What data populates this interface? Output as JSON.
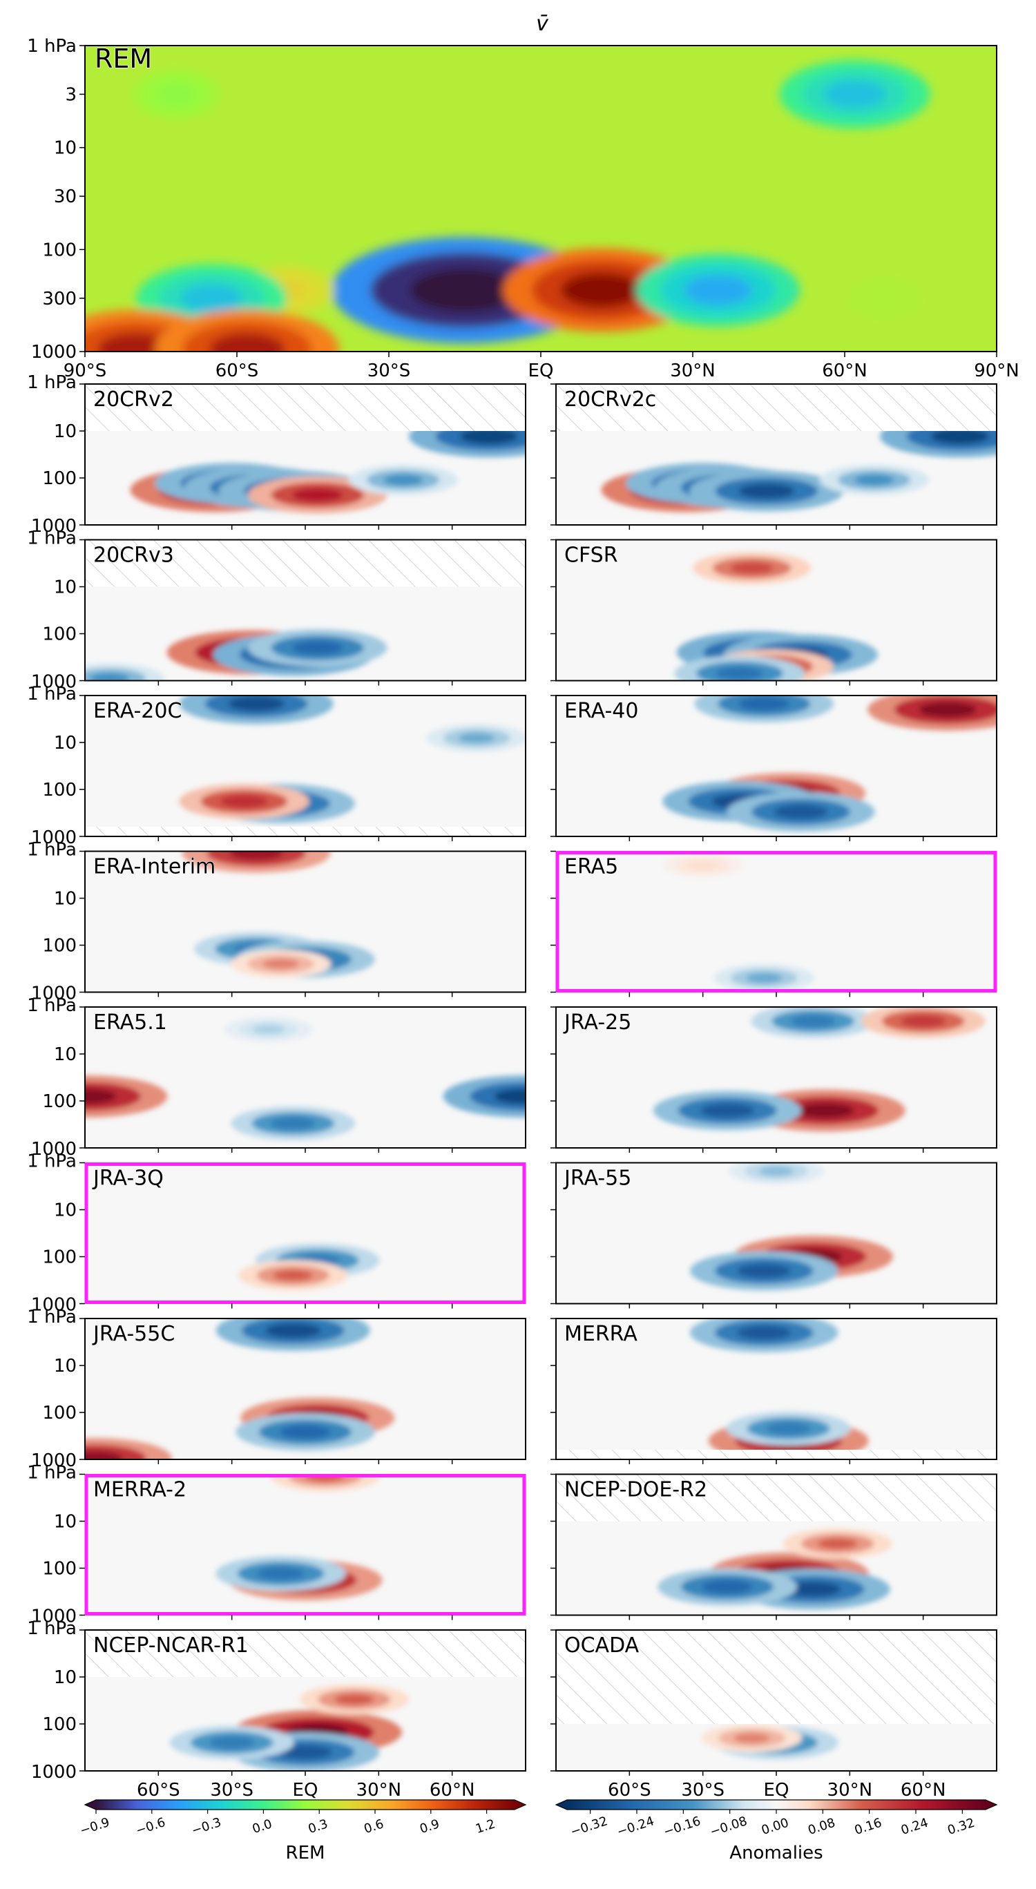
{
  "figure": {
    "title": "v̄"
  },
  "chart_data": {
    "type": "heatmap",
    "top_panel": {
      "label": "REM",
      "label_color": "#ff22ff",
      "y_ticks": [
        "1 hPa",
        "3",
        "10",
        "30",
        "100",
        "300",
        "1000"
      ],
      "y_tick_values": [
        1,
        3,
        10,
        30,
        100,
        300,
        1000
      ],
      "x_ticks": [
        "90°S",
        "60°S",
        "30°S",
        "EQ",
        "30°N",
        "60°N",
        "90°N"
      ],
      "x_tick_values": [
        -90,
        -60,
        -30,
        0,
        30,
        60,
        90
      ],
      "features": [
        {
          "lat": -15,
          "p": 250,
          "value": -1.2
        },
        {
          "lat": 12,
          "p": 250,
          "value": 1.3
        },
        {
          "lat": -50,
          "p": 250,
          "value": 0.5
        },
        {
          "lat": 35,
          "p": 250,
          "value": -0.4
        },
        {
          "lat": -65,
          "p": 300,
          "value": -0.3
        },
        {
          "lat": 68,
          "p": 300,
          "value": 0.3
        },
        {
          "lat": 62,
          "p": 3,
          "value": -0.3
        },
        {
          "lat": -72,
          "p": 3,
          "value": 0.2
        },
        {
          "lat": -80,
          "p": 950,
          "value": 1.2
        },
        {
          "lat": -58,
          "p": 950,
          "value": 1.2
        }
      ]
    },
    "anomaly_panels": [
      {
        "label": "20CRv2",
        "highlight": false,
        "hatched_top_hPa": 10,
        "hatch_edges": false,
        "features": [
          {
            "lat": -37,
            "p": 180,
            "value": 0.35
          },
          {
            "lat": -30,
            "p": 130,
            "value": -0.3
          },
          {
            "lat": -18,
            "p": 160,
            "value": -0.3
          },
          {
            "lat": -4,
            "p": 190,
            "value": -0.3
          },
          {
            "lat": 5,
            "p": 230,
            "value": 0.25
          },
          {
            "lat": 75,
            "p": 13,
            "value": -0.32
          },
          {
            "lat": 40,
            "p": 110,
            "value": -0.15
          }
        ]
      },
      {
        "label": "20CRv2c",
        "highlight": false,
        "hatched_top_hPa": 10,
        "hatch_edges": false,
        "features": [
          {
            "lat": -37,
            "p": 180,
            "value": 0.35
          },
          {
            "lat": -30,
            "p": 130,
            "value": -0.3
          },
          {
            "lat": -18,
            "p": 160,
            "value": -0.3
          },
          {
            "lat": -4,
            "p": 190,
            "value": -0.3
          },
          {
            "lat": 75,
            "p": 13,
            "value": -0.32
          },
          {
            "lat": 40,
            "p": 110,
            "value": -0.15
          }
        ]
      },
      {
        "label": "20CRv3",
        "highlight": false,
        "hatched_top_hPa": 10,
        "hatch_edges": false,
        "features": [
          {
            "lat": -22,
            "p": 250,
            "value": 0.35
          },
          {
            "lat": -5,
            "p": 280,
            "value": -0.32
          },
          {
            "lat": 5,
            "p": 200,
            "value": -0.25
          },
          {
            "lat": -80,
            "p": 900,
            "value": -0.15
          }
        ]
      },
      {
        "label": "CFSR",
        "highlight": false,
        "hatched_top_hPa": null,
        "hatch_edges": false,
        "features": [
          {
            "lat": -10,
            "p": 4,
            "value": 0.18
          },
          {
            "lat": -8,
            "p": 250,
            "value": -0.32
          },
          {
            "lat": 10,
            "p": 280,
            "value": -0.3
          },
          {
            "lat": -2,
            "p": 500,
            "value": 0.2
          },
          {
            "lat": -15,
            "p": 700,
            "value": -0.22
          }
        ]
      },
      {
        "label": "ERA-20C",
        "highlight": false,
        "hatched_top_hPa": null,
        "hatch_edges": true,
        "features": [
          {
            "lat": -20,
            "p": 1.5,
            "value": -0.3
          },
          {
            "lat": -10,
            "p": 200,
            "value": -0.28
          },
          {
            "lat": -25,
            "p": 180,
            "value": 0.22
          },
          {
            "lat": 70,
            "p": 8,
            "value": -0.12
          }
        ]
      },
      {
        "label": "ERA-40",
        "highlight": false,
        "hatched_top_hPa": null,
        "hatch_edges": false,
        "features": [
          {
            "lat": 70,
            "p": 2,
            "value": 0.32
          },
          {
            "lat": 5,
            "p": 120,
            "value": 0.3
          },
          {
            "lat": -15,
            "p": 180,
            "value": -0.3
          },
          {
            "lat": 10,
            "p": 300,
            "value": -0.28
          },
          {
            "lat": -5,
            "p": 1.5,
            "value": -0.25
          }
        ]
      },
      {
        "label": "ERA-Interim",
        "highlight": false,
        "hatched_top_hPa": null,
        "hatch_edges": false,
        "features": [
          {
            "lat": -20,
            "p": 1.1,
            "value": 0.28
          },
          {
            "lat": -20,
            "p": 120,
            "value": -0.2
          },
          {
            "lat": 0,
            "p": 200,
            "value": -0.25
          },
          {
            "lat": -10,
            "p": 250,
            "value": 0.12
          }
        ]
      },
      {
        "label": "ERA5",
        "highlight": true,
        "hatched_top_hPa": null,
        "hatch_edges": false,
        "features": [
          {
            "lat": -5,
            "p": 500,
            "value": -0.12
          },
          {
            "lat": -30,
            "p": 2,
            "value": 0.05
          }
        ]
      },
      {
        "label": "ERA5.1",
        "highlight": false,
        "hatched_top_hPa": null,
        "hatch_edges": false,
        "features": [
          {
            "lat": -89,
            "p": 80,
            "value": 0.32
          },
          {
            "lat": 89,
            "p": 80,
            "value": -0.32
          },
          {
            "lat": -5,
            "p": 300,
            "value": -0.2
          },
          {
            "lat": -15,
            "p": 3,
            "value": -0.08
          }
        ]
      },
      {
        "label": "JRA-25",
        "highlight": false,
        "hatched_top_hPa": null,
        "hatch_edges": false,
        "features": [
          {
            "lat": 20,
            "p": 160,
            "value": 0.32
          },
          {
            "lat": -20,
            "p": 160,
            "value": -0.28
          },
          {
            "lat": 15,
            "p": 2,
            "value": -0.2
          },
          {
            "lat": 60,
            "p": 2,
            "value": 0.2
          }
        ]
      },
      {
        "label": "JRA-3Q",
        "highlight": true,
        "hatched_top_hPa": null,
        "hatch_edges": false,
        "features": [
          {
            "lat": 5,
            "p": 120,
            "value": -0.2
          },
          {
            "lat": -5,
            "p": 250,
            "value": 0.15
          }
        ]
      },
      {
        "label": "JRA-55",
        "highlight": false,
        "hatched_top_hPa": null,
        "hatch_edges": false,
        "features": [
          {
            "lat": 15,
            "p": 100,
            "value": 0.32
          },
          {
            "lat": -5,
            "p": 200,
            "value": -0.28
          },
          {
            "lat": 0,
            "p": 1.5,
            "value": -0.1
          }
        ]
      },
      {
        "label": "JRA-55C",
        "highlight": false,
        "hatched_top_hPa": null,
        "hatch_edges": false,
        "features": [
          {
            "lat": -5,
            "p": 1.8,
            "value": -0.3
          },
          {
            "lat": 5,
            "p": 130,
            "value": 0.3
          },
          {
            "lat": 0,
            "p": 260,
            "value": -0.25
          },
          {
            "lat": -86,
            "p": 950,
            "value": 0.3
          }
        ]
      },
      {
        "label": "MERRA",
        "highlight": false,
        "hatched_top_hPa": null,
        "hatch_edges": true,
        "features": [
          {
            "lat": 5,
            "p": 400,
            "value": 0.32
          },
          {
            "lat": -5,
            "p": 2,
            "value": -0.28
          },
          {
            "lat": 5,
            "p": 220,
            "value": -0.2
          }
        ]
      },
      {
        "label": "MERRA-2",
        "highlight": true,
        "hatched_top_hPa": null,
        "hatch_edges": false,
        "features": [
          {
            "lat": 0,
            "p": 180,
            "value": 0.3
          },
          {
            "lat": -10,
            "p": 130,
            "value": -0.22
          },
          {
            "lat": 8,
            "p": 1.1,
            "value": 0.15
          }
        ]
      },
      {
        "label": "NCEP-DOE-R2",
        "highlight": false,
        "hatched_top_hPa": 10,
        "hatch_edges": false,
        "features": [
          {
            "lat": 5,
            "p": 130,
            "value": 0.32
          },
          {
            "lat": 15,
            "p": 280,
            "value": -0.3
          },
          {
            "lat": -20,
            "p": 250,
            "value": -0.25
          },
          {
            "lat": 25,
            "p": 30,
            "value": 0.15
          }
        ]
      },
      {
        "label": "NCEP-NCAR-R1",
        "highlight": false,
        "hatched_top_hPa": 10,
        "hatch_edges": false,
        "features": [
          {
            "lat": 5,
            "p": 150,
            "value": 0.35
          },
          {
            "lat": 0,
            "p": 400,
            "value": -0.28
          },
          {
            "lat": 20,
            "p": 30,
            "value": 0.15
          },
          {
            "lat": -30,
            "p": 250,
            "value": -0.2
          }
        ]
      },
      {
        "label": "OCADA",
        "highlight": false,
        "hatched_top_hPa": 100,
        "hatch_edges": false,
        "features": [
          {
            "lat": 0,
            "p": 250,
            "value": -0.2
          },
          {
            "lat": -10,
            "p": 200,
            "value": 0.12
          }
        ]
      }
    ],
    "panel_y_ticks": [
      "1 hPa",
      "10",
      "100",
      "1000"
    ],
    "panel_y_tick_values": [
      1,
      10,
      100,
      1000
    ],
    "bottom_x_ticks": [
      "60°S",
      "30°S",
      "EQ",
      "30°N",
      "60°N"
    ],
    "bottom_x_tick_values": [
      -60,
      -30,
      0,
      30,
      60
    ],
    "colorbar_rem": {
      "label": "REM",
      "colormap": "turbo",
      "range": [
        -0.9,
        1.35
      ],
      "ticks": [
        "−0.9",
        "−0.6",
        "−0.3",
        "0.0",
        "0.3",
        "0.6",
        "0.9",
        "1.2"
      ],
      "tick_values": [
        -0.9,
        -0.6,
        -0.3,
        0.0,
        0.3,
        0.6,
        0.9,
        1.2
      ]
    },
    "colorbar_anom": {
      "label": "Anomalies",
      "colormap": "RdBu_r",
      "range": [
        -0.36,
        0.36
      ],
      "ticks": [
        "−0.32",
        "−0.24",
        "−0.16",
        "−0.08",
        "0.00",
        "0.08",
        "0.16",
        "0.24",
        "0.32"
      ],
      "tick_values": [
        -0.32,
        -0.24,
        -0.16,
        -0.08,
        0.0,
        0.08,
        0.16,
        0.24,
        0.32
      ]
    },
    "highlight_color": "#ff22ff"
  }
}
